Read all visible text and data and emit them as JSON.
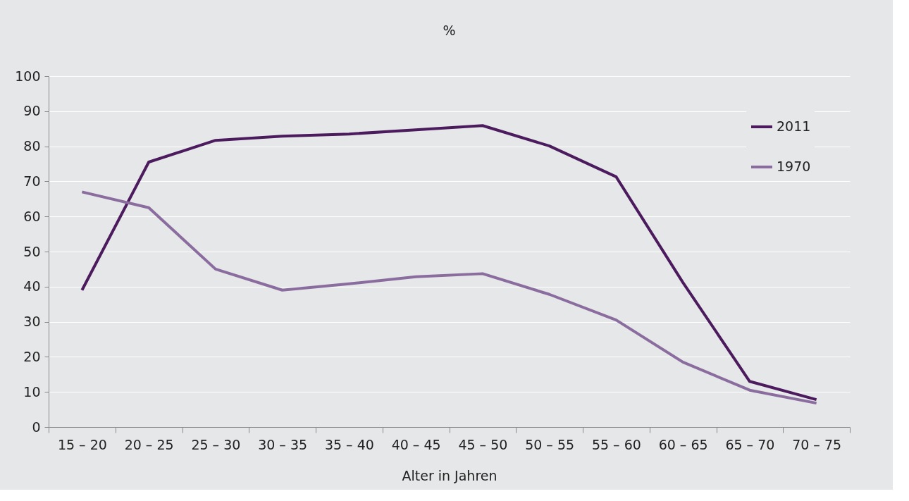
{
  "chart_data": {
    "type": "line",
    "title": "%",
    "xlabel": "Alter in Jahren",
    "categories": [
      "15 – 20",
      "20 – 25",
      "25 – 30",
      "30 – 35",
      "35 – 40",
      "40 – 45",
      "45 – 50",
      "50 – 55",
      "55 – 60",
      "60 – 65",
      "65 – 70",
      "70 – 75"
    ],
    "series": [
      {
        "name": "2011",
        "color": "#4b1b5e",
        "values": [
          39,
          75.5,
          81.7,
          82.9,
          83.5,
          84.7,
          85.9,
          80.1,
          71.3,
          41.2,
          13,
          7.8
        ]
      },
      {
        "name": "1970",
        "color": "#8a6d9e",
        "values": [
          67,
          62.5,
          45,
          39,
          40.8,
          42.8,
          43.7,
          37.8,
          30.5,
          18.5,
          10.5,
          6.8
        ]
      }
    ],
    "ylim": [
      0,
      100
    ],
    "yticks": [
      0,
      10,
      20,
      30,
      40,
      50,
      60,
      70,
      80,
      90,
      100
    ],
    "grid": "y",
    "legend": "top right",
    "marker": "none",
    "line_style": "solid"
  }
}
